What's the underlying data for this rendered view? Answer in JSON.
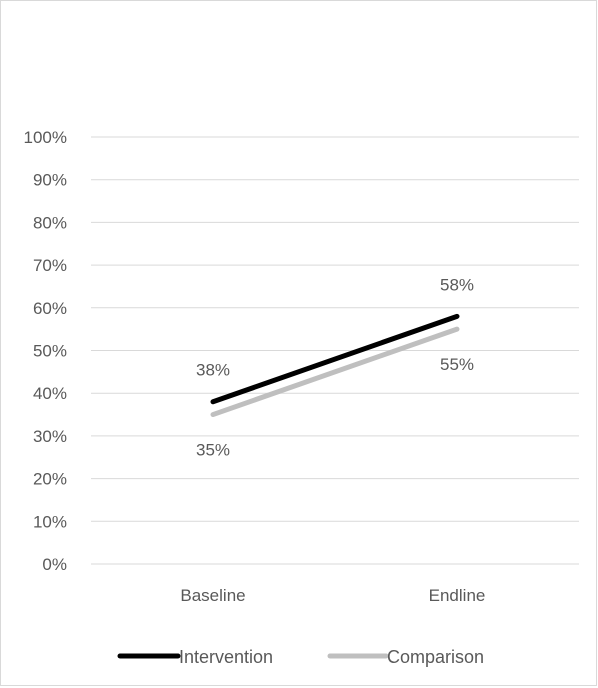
{
  "chart_data": {
    "type": "line",
    "categories": [
      "Baseline",
      "Endline"
    ],
    "series": [
      {
        "name": "Intervention",
        "values": [
          38,
          58
        ],
        "labels": [
          "38%",
          "58%"
        ],
        "color": "#000000"
      },
      {
        "name": "Comparison",
        "values": [
          35,
          55
        ],
        "labels": [
          "35%",
          "55%"
        ],
        "color": "#bfbfbf"
      }
    ],
    "ylim": [
      0,
      100
    ],
    "y_ticks": [
      "0%",
      "10%",
      "20%",
      "30%",
      "40%",
      "50%",
      "60%",
      "70%",
      "80%",
      "90%",
      "100%"
    ],
    "grid": true,
    "gridline_color": "#d9d9d9",
    "legend_position": "bottom",
    "title": "",
    "xlabel": "",
    "ylabel": ""
  }
}
